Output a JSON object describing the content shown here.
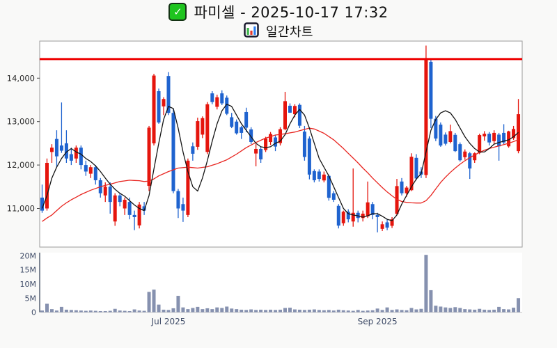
{
  "title": {
    "line1": "파미셀 - 2025-10-17 17:32",
    "line2": "일간차트",
    "check_icon": "✓"
  },
  "colors": {
    "up_candle": "#e5150d",
    "down_candle": "#1f63cf",
    "limit_line": "#ee0000",
    "ma_short": "#141414",
    "ma_long": "#e82520",
    "volume_bar": "#8691af",
    "price_label": "#2a2a2a",
    "axis_label": "#3d4a66",
    "panel_border": "#9a9a9a",
    "plot_bg": "#ffffff",
    "figure_bg": "#f9f9f8",
    "icon_green": "#3cb44a",
    "icon_red": "#e4392e",
    "icon_blue": "#2e7ef0"
  },
  "chart_data": {
    "type": "candlestick+volume",
    "symbol": "파미셀",
    "timestamp": "2025-10-17 17:32",
    "price_axis": {
      "ticks": [
        "14,000",
        "13,000",
        "12,000",
        "11,000"
      ],
      "tick_values": [
        14000,
        13000,
        12000,
        11000
      ],
      "range": [
        10100,
        14850
      ]
    },
    "volume_axis": {
      "ticks": [
        "20M",
        "15M",
        "10M",
        "5M",
        "0"
      ],
      "tick_values": [
        20,
        15,
        10,
        5,
        0
      ],
      "unit": "M shares"
    },
    "x_axis": {
      "ticks": [
        "Jul 2025",
        "Sep 2025"
      ],
      "tick_indices": [
        26,
        69
      ]
    },
    "limit_line_value": 14440,
    "candles": [
      [
        11250,
        11550,
        10900,
        10950
      ],
      [
        11000,
        12150,
        10950,
        12050
      ],
      [
        12300,
        12480,
        12050,
        12400
      ],
      [
        12600,
        12800,
        11950,
        12200
      ],
      [
        12450,
        13440,
        12280,
        12330
      ],
      [
        12500,
        12800,
        12050,
        12150
      ],
      [
        12250,
        12400,
        12000,
        12100
      ],
      [
        12150,
        12450,
        12050,
        12400
      ],
      [
        12400,
        12450,
        11900,
        12000
      ],
      [
        12000,
        12100,
        11750,
        11850
      ],
      [
        11800,
        12000,
        11700,
        11950
      ],
      [
        11950,
        12000,
        11550,
        11650
      ],
      [
        11650,
        11700,
        11250,
        11350
      ],
      [
        11300,
        11600,
        11150,
        11500
      ],
      [
        11500,
        11600,
        10880,
        11150
      ],
      [
        10700,
        11350,
        10600,
        11300
      ],
      [
        11300,
        11350,
        11050,
        11150
      ],
      [
        11000,
        11250,
        10850,
        11200
      ],
      [
        11150,
        11250,
        10750,
        10850
      ],
      [
        10850,
        10950,
        10500,
        10800
      ],
      [
        10610,
        11150,
        10540,
        11090
      ],
      [
        11050,
        11150,
        10850,
        10950
      ],
      [
        11520,
        12900,
        11400,
        12860
      ],
      [
        12500,
        14100,
        12450,
        14060
      ],
      [
        13700,
        13760,
        12950,
        12980
      ],
      [
        13350,
        13560,
        13150,
        13520
      ],
      [
        14050,
        14140,
        13150,
        13200
      ],
      [
        13200,
        13300,
        11350,
        11400
      ],
      [
        11400,
        11450,
        10780,
        11000
      ],
      [
        11100,
        11250,
        10690,
        10950
      ],
      [
        10850,
        12150,
        10800,
        12100
      ],
      [
        12430,
        12520,
        12100,
        12260
      ],
      [
        12420,
        13090,
        12350,
        13010
      ],
      [
        12700,
        13120,
        12620,
        13080
      ],
      [
        12300,
        13450,
        12250,
        13400
      ],
      [
        13650,
        13700,
        13400,
        13450
      ],
      [
        13340,
        13620,
        13280,
        13560
      ],
      [
        13650,
        13720,
        13380,
        13420
      ],
      [
        13550,
        13600,
        13150,
        13180
      ],
      [
        13100,
        13200,
        12850,
        12880
      ],
      [
        13000,
        13050,
        12700,
        12730
      ],
      [
        12870,
        12900,
        12600,
        12740
      ],
      [
        13220,
        13320,
        12760,
        12860
      ],
      [
        12820,
        12870,
        12480,
        12530
      ],
      [
        12265,
        12480,
        11970,
        12370
      ],
      [
        12370,
        12420,
        12050,
        12130
      ],
      [
        12345,
        12650,
        12300,
        12610
      ],
      [
        12530,
        12760,
        12460,
        12715
      ],
      [
        12635,
        12700,
        12320,
        12425
      ],
      [
        12505,
        12870,
        12450,
        12825
      ],
      [
        12825,
        13685,
        12800,
        13470
      ],
      [
        13365,
        13420,
        13200,
        13205
      ],
      [
        13170,
        13400,
        13100,
        13360
      ],
      [
        13385,
        13420,
        12850,
        12905
      ],
      [
        12770,
        12900,
        12100,
        12185
      ],
      [
        12610,
        12660,
        11670,
        11780
      ],
      [
        11860,
        11900,
        11600,
        11650
      ],
      [
        11850,
        11900,
        11620,
        11680
      ],
      [
        11645,
        11850,
        11600,
        11780
      ],
      [
        11750,
        11780,
        11180,
        11245
      ],
      [
        11350,
        11400,
        11150,
        11200
      ],
      [
        11060,
        11100,
        10540,
        10605
      ],
      [
        10660,
        10950,
        10600,
        10925
      ],
      [
        10925,
        10980,
        10680,
        10750
      ],
      [
        10700,
        11920,
        10580,
        10900
      ],
      [
        10900,
        10950,
        10680,
        10780
      ],
      [
        10780,
        10950,
        10700,
        10880
      ],
      [
        10820,
        11620,
        10780,
        11140
      ],
      [
        11100,
        11150,
        10750,
        10850
      ],
      [
        10850,
        10900,
        10450,
        10800
      ],
      [
        10530,
        10700,
        10480,
        10635
      ],
      [
        10680,
        10750,
        10500,
        10560
      ],
      [
        10600,
        10800,
        10550,
        10750
      ],
      [
        10875,
        11680,
        10850,
        11515
      ],
      [
        11620,
        11700,
        11300,
        11350
      ],
      [
        11350,
        11520,
        11270,
        11480
      ],
      [
        11420,
        12270,
        11400,
        12190
      ],
      [
        12165,
        12250,
        11650,
        11690
      ],
      [
        11850,
        11950,
        11700,
        11780
      ],
      [
        11770,
        14750,
        11700,
        14430
      ],
      [
        14375,
        14420,
        12850,
        13065
      ],
      [
        13065,
        13130,
        12550,
        12610
      ],
      [
        12930,
        12980,
        12420,
        12450
      ],
      [
        12700,
        12750,
        12450,
        12490
      ],
      [
        12530,
        12930,
        12500,
        12780
      ],
      [
        12695,
        12740,
        12300,
        12320
      ],
      [
        12480,
        12520,
        12080,
        12110
      ],
      [
        12180,
        12360,
        12120,
        12310
      ],
      [
        12270,
        12300,
        11680,
        11920
      ],
      [
        12110,
        12290,
        12050,
        12270
      ],
      [
        12280,
        12720,
        12250,
        12690
      ],
      [
        12660,
        12780,
        12560,
        12720
      ],
      [
        12720,
        12760,
        12450,
        12520
      ],
      [
        12550,
        12800,
        12480,
        12740
      ],
      [
        12700,
        12740,
        12100,
        12430
      ],
      [
        12740,
        12940,
        12480,
        12520
      ],
      [
        12430,
        12790,
        12400,
        12775
      ],
      [
        12620,
        12900,
        12580,
        12830
      ],
      [
        12320,
        13520,
        12270,
        13170
      ]
    ],
    "volumes_m": [
      0.6,
      3.0,
      1.1,
      0.6,
      1.9,
      0.9,
      0.8,
      0.7,
      0.6,
      0.5,
      0.6,
      0.5,
      0.4,
      0.4,
      0.5,
      1.2,
      0.6,
      0.5,
      0.4,
      1.0,
      0.6,
      0.5,
      7.2,
      8.0,
      2.7,
      0.9,
      0.8,
      1.4,
      5.8,
      1.7,
      1.1,
      1.5,
      1.9,
      1.1,
      1.4,
      1.1,
      1.7,
      1.5,
      2.0,
      1.3,
      1.1,
      0.9,
      0.8,
      1.0,
      0.8,
      0.9,
      0.8,
      0.9,
      0.8,
      0.9,
      1.5,
      1.6,
      1.0,
      0.9,
      0.8,
      0.9,
      1.0,
      0.8,
      0.7,
      0.8,
      0.6,
      0.9,
      0.7,
      0.6,
      0.5,
      0.8,
      0.5,
      0.6,
      0.7,
      1.3,
      0.8,
      1.7,
      0.8,
      1.0,
      0.8,
      0.7,
      1.5,
      1.0,
      1.2,
      20.3,
      7.8,
      2.3,
      2.0,
      1.7,
      1.5,
      1.8,
      1.5,
      1.1,
      1.0,
      0.9,
      1.2,
      0.9,
      0.8,
      0.9,
      1.9,
      1.1,
      1.0,
      1.6,
      5.0
    ],
    "ma_short": [
      11000,
      11300,
      11700,
      11950,
      12150,
      12300,
      12380,
      12300,
      12250,
      12150,
      12080,
      11980,
      11850,
      11700,
      11560,
      11440,
      11350,
      11280,
      11180,
      11080,
      11000,
      10950,
      11300,
      11900,
      12500,
      13050,
      13350,
      13300,
      12850,
      12300,
      11850,
      11500,
      11400,
      11700,
      12100,
      12550,
      12950,
      13250,
      13400,
      13350,
      13150,
      12950,
      12800,
      12650,
      12500,
      12420,
      12400,
      12420,
      12500,
      12550,
      12700,
      12950,
      13150,
      13280,
      13150,
      12850,
      12500,
      12150,
      11950,
      11750,
      11500,
      11250,
      11000,
      10880,
      10850,
      10830,
      10800,
      10830,
      10880,
      10880,
      10820,
      10750,
      10720,
      10850,
      11100,
      11300,
      11500,
      11680,
      11800,
      12300,
      12800,
      13050,
      13200,
      13250,
      13200,
      13050,
      12850,
      12650,
      12500,
      12380,
      12300,
      12300,
      12380,
      12480,
      12520,
      12550,
      12580,
      12650,
      12750
    ],
    "ma_long": [
      10700,
      10780,
      10850,
      10950,
      11050,
      11130,
      11200,
      11260,
      11320,
      11370,
      11420,
      11460,
      11500,
      11530,
      11560,
      11590,
      11620,
      11635,
      11650,
      11645,
      11640,
      11620,
      11630,
      11680,
      11750,
      11800,
      11850,
      11890,
      11930,
      11940,
      11950,
      11940,
      11930,
      11945,
      11960,
      11995,
      12030,
      12075,
      12120,
      12185,
      12250,
      12325,
      12400,
      12460,
      12520,
      12570,
      12620,
      12655,
      12690,
      12705,
      12720,
      12740,
      12760,
      12790,
      12820,
      12850,
      12830,
      12780,
      12730,
      12655,
      12580,
      12480,
      12380,
      12270,
      12160,
      12050,
      11930,
      11820,
      11700,
      11590,
      11480,
      11380,
      11290,
      11210,
      11160,
      11140,
      11130,
      11125,
      11125,
      11180,
      11300,
      11450,
      11600,
      11720,
      11830,
      11930,
      12020,
      12100,
      12170,
      12230,
      12290,
      12340,
      12380,
      12410,
      12440,
      12470,
      12500,
      12540,
      12580
    ]
  }
}
